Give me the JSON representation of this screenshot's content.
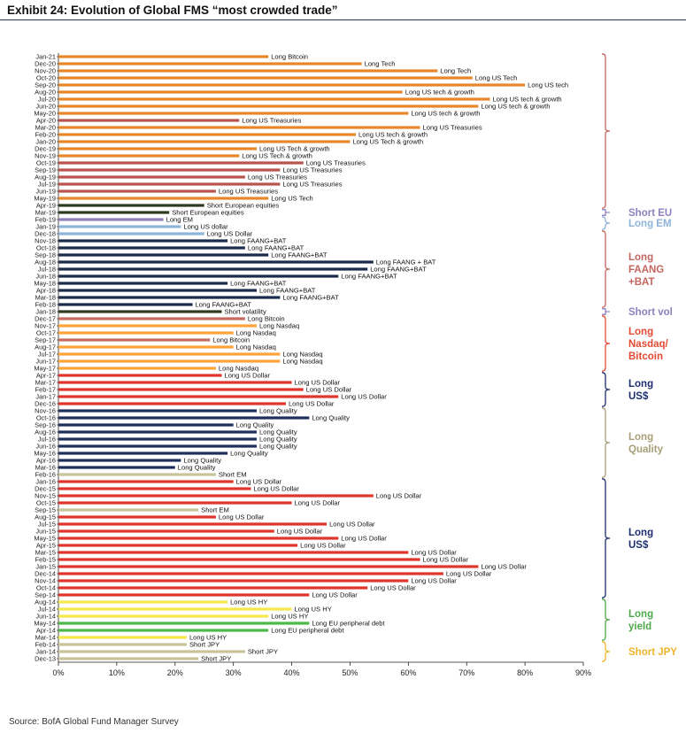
{
  "title": "Exhibit 24: Evolution of Global FMS “most crowded trade”",
  "source": "Source: BofA Global Fund Manager Survey",
  "chart_data": {
    "type": "bar",
    "orientation": "horizontal",
    "xlim": [
      0,
      90
    ],
    "xticks": [
      "0%",
      "10%",
      "20%",
      "30%",
      "40%",
      "50%",
      "60%",
      "70%",
      "80%",
      "90%"
    ],
    "categories": [
      "Jan-21",
      "Dec-20",
      "Nov-20",
      "Oct-20",
      "Sep-20",
      "Aug-20",
      "Jul-20",
      "Jun-20",
      "May-20",
      "Apr-20",
      "Mar-20",
      "Feb-20",
      "Jan-20",
      "Dec-19",
      "Nov-19",
      "Oct-19",
      "Sep-19",
      "Aug-19",
      "Jul-19",
      "Jun-19",
      "May-19",
      "Apr-19",
      "Mar-19",
      "Feb-19",
      "Jan-19",
      "Dec-18",
      "Nov-18",
      "Oct-18",
      "Sep-18",
      "Aug-18",
      "Jul-18",
      "Jun-18",
      "May-18",
      "Apr-18",
      "Mar-18",
      "Feb-18",
      "Jan-18",
      "Dec-17",
      "Nov-17",
      "Oct-17",
      "Sep-17",
      "Aug-17",
      "Jul-17",
      "Jun-17",
      "May-17",
      "Apr-17",
      "Mar-17",
      "Feb-17",
      "Jan-17",
      "Dec-16",
      "Nov-16",
      "Oct-16",
      "Sep-16",
      "Aug-16",
      "Jul-16",
      "Jun-16",
      "May-16",
      "Apr-16",
      "Mar-16",
      "Feb-16",
      "Jan-16",
      "Dec-15",
      "Nov-15",
      "Oct-15",
      "Sep-15",
      "Aug-15",
      "Jul-15",
      "Jun-15",
      "May-15",
      "Apr-15",
      "Mar-15",
      "Feb-15",
      "Jan-15",
      "Dec-14",
      "Nov-14",
      "Oct-14",
      "Sep-14",
      "Aug-14",
      "Jul-14",
      "Jun-14",
      "May-14",
      "Apr-14",
      "Mar-14",
      "Feb-14",
      "Jan-14",
      "Dec-13"
    ],
    "values": [
      36,
      52,
      65,
      71,
      80,
      59,
      74,
      72,
      60,
      31,
      62,
      51,
      50,
      34,
      31,
      42,
      38,
      32,
      38,
      27,
      36,
      25,
      19,
      18,
      21,
      25,
      29,
      32,
      36,
      54,
      53,
      48,
      29,
      34,
      38,
      23,
      28,
      32,
      34,
      30,
      26,
      30,
      38,
      38,
      27,
      28,
      40,
      42,
      48,
      39,
      34,
      43,
      30,
      34,
      34,
      34,
      29,
      21,
      20,
      27,
      30,
      33,
      54,
      40,
      24,
      27,
      46,
      37,
      48,
      41,
      60,
      62,
      72,
      66,
      60,
      53,
      43,
      29,
      40,
      36,
      43,
      36,
      22,
      22,
      32,
      24
    ],
    "labels": [
      "Long Bitcoin",
      "Long Tech",
      "Long Tech",
      "Long US Tech",
      "Long US tech",
      "Long US tech & growth",
      "Long US tech & growth",
      "Long US tech & growth",
      "Long US tech & growth",
      "Long US Treasuries",
      "Long US Treasuries",
      "Long US tech & growth",
      "Long US Tech & growth",
      "Long US Tech & growth",
      "Long US Tech & growth",
      "Long US Treasuries",
      "Long US Treasuries",
      "Long US Treasuries",
      "Long US Treasuries",
      "Long US Treasuries",
      "Long US Tech",
      "Short European equities",
      "Short European equities",
      "Long EM",
      "Long US dollar",
      "Long US Dollar",
      "Long FAANG+BAT",
      "Long FAANG+BAT",
      "Long FAANG+BAT",
      "Long FAANG + BAT",
      "Long FAANG+BAT",
      "Long FAANG+BAT",
      "Long FAANG+BAT",
      "Long FAANG+BAT",
      "Long FAANG+BAT",
      "Long FAANG+BAT",
      "Short volatility",
      "Long Bitcoin",
      "Long Nasdaq",
      "Long Nasdaq",
      "Long Bitcoin",
      "Long Nasdaq",
      "Long Nasdaq",
      "Long Nasdaq",
      "Long Nasdaq",
      "Long US Dollar",
      "Long US Dollar",
      "Long US Dollar",
      "Long US Dollar",
      "Long US Dollar",
      "Long Quality",
      "Long Quality",
      "Long Quality",
      "Long Quality",
      "Long Quality",
      "Long Quality",
      "Long Quality",
      "Long Quality",
      "Long Quality",
      "Short EM",
      "Long US Dollar",
      "Long US Dollar",
      "Long US Dollar",
      "Long US Dollar",
      "Short EM",
      "Long US Dollar",
      "Long US Dollar",
      "Long US Dollar",
      "Long US Dollar",
      "Long US Dollar",
      "Long US Dollar",
      "Long US Dollar",
      "Long US Dollar",
      "Long US Dollar",
      "Long US Dollar",
      "Long US Dollar",
      "Long US Dollar",
      "Long US HY",
      "Long US HY",
      "Long US HY",
      "Long EU peripheral debt",
      "Long EU peripheral debt",
      "Long US HY",
      "Short JPY",
      "Short JPY",
      "Short JPY"
    ],
    "color_index": [
      1,
      1,
      1,
      1,
      1,
      1,
      1,
      1,
      1,
      2,
      1,
      1,
      1,
      1,
      1,
      2,
      2,
      2,
      2,
      2,
      1,
      3,
      3,
      4,
      5,
      5,
      6,
      6,
      6,
      6,
      6,
      6,
      6,
      6,
      6,
      6,
      3,
      7,
      8,
      8,
      7,
      8,
      8,
      8,
      8,
      9,
      9,
      9,
      9,
      9,
      10,
      10,
      10,
      10,
      10,
      10,
      10,
      10,
      10,
      11,
      9,
      9,
      9,
      9,
      11,
      9,
      9,
      9,
      9,
      9,
      9,
      9,
      9,
      9,
      9,
      9,
      9,
      12,
      12,
      12,
      13,
      13,
      12,
      11,
      11,
      11
    ],
    "colors": [
      "",
      "#e8872a",
      "#b9534d",
      "#2e3a1f",
      "#8e80b8",
      "#8fb4d9",
      "#1a2a4a",
      "#c46a62",
      "#ffa33a",
      "#e0332a",
      "#1e2f5e",
      "#c9c39a",
      "#f5e84a",
      "#4db84a",
      "#2aa7d8"
    ],
    "groups": [
      {
        "label": [
          "Short EU"
        ],
        "color": "#8f80bf"
      },
      {
        "label": [
          "Long EM"
        ],
        "color": "#8fb4d9"
      },
      {
        "label": [
          "Long",
          "FAANG",
          "+BAT"
        ],
        "color": "#c4655f"
      },
      {
        "label": [
          "Short vol"
        ],
        "color": "#8f80bf"
      },
      {
        "label": [
          "Long",
          "Nasdaq/",
          "Bitcoin"
        ],
        "color": "#e44a32"
      },
      {
        "label": [
          "Long",
          "US$"
        ],
        "color": "#1e2f6e"
      },
      {
        "label": [
          "Long",
          "Quality"
        ],
        "color": "#a89f78"
      },
      {
        "label": [
          "Long",
          "US$"
        ],
        "color": "#1e2f6e"
      },
      {
        "label": [
          "Long",
          "yield"
        ],
        "color": "#4da84a"
      },
      {
        "label": [
          "Short JPY"
        ],
        "color": "#f0b42a"
      }
    ]
  }
}
